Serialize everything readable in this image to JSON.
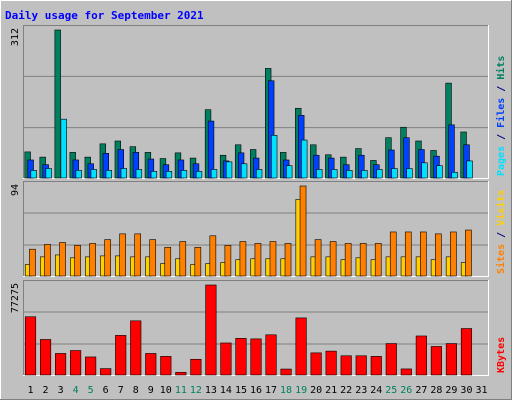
{
  "chart_data": [
    {
      "type": "bar",
      "title": "Daily usage for September 2021",
      "categories": [
        "1",
        "2",
        "3",
        "4",
        "5",
        "6",
        "7",
        "8",
        "9",
        "10",
        "11",
        "12",
        "13",
        "14",
        "15",
        "16",
        "17",
        "18",
        "19",
        "20",
        "21",
        "22",
        "23",
        "24",
        "25",
        "26",
        "27",
        "28",
        "29",
        "30",
        "31"
      ],
      "weekend_days": [
        "4",
        "5",
        "11",
        "12",
        "18",
        "19",
        "25",
        "26"
      ],
      "ylim": [
        0,
        312
      ],
      "max_label": "312",
      "right_label_parts": [
        {
          "text": "Pages",
          "color": "#00e0ff"
        },
        {
          "text": " / ",
          "color": "#000080"
        },
        {
          "text": "Files",
          "color": "#0040ff"
        },
        {
          "text": " / ",
          "color": "#000080"
        },
        {
          "text": "Hits",
          "color": "#008060"
        }
      ],
      "series": [
        {
          "name": "Hits",
          "color": "#008060",
          "values": [
            55,
            44,
            312,
            54,
            44,
            72,
            78,
            66,
            54,
            41,
            53,
            42,
            144,
            48,
            70,
            60,
            231,
            54,
            147,
            70,
            49,
            44,
            62,
            37,
            85,
            107,
            78,
            58,
            200,
            97,
            0
          ]
        },
        {
          "name": "Files",
          "color": "#0040ff",
          "values": [
            38,
            28,
            0,
            38,
            30,
            52,
            60,
            54,
            40,
            28,
            38,
            30,
            120,
            36,
            53,
            42,
            205,
            38,
            132,
            48,
            42,
            28,
            48,
            28,
            59,
            85,
            60,
            46,
            112,
            70,
            0
          ]
        },
        {
          "name": "Pages",
          "color": "#00e0ff",
          "values": [
            16,
            20,
            124,
            16,
            18,
            16,
            20,
            18,
            14,
            14,
            16,
            14,
            18,
            34,
            30,
            18,
            90,
            26,
            80,
            18,
            18,
            16,
            16,
            18,
            20,
            20,
            32,
            26,
            12,
            36,
            0
          ]
        }
      ]
    },
    {
      "type": "bar",
      "ylim": [
        0,
        94
      ],
      "max_label": "94",
      "right_label_parts": [
        {
          "text": "Sites",
          "color": "#ff8000"
        },
        {
          "text": " / ",
          "color": "#000080"
        },
        {
          "text": "Visits",
          "color": "#ffd000"
        }
      ],
      "series": [
        {
          "name": "Visits",
          "color": "#ffd000",
          "values": [
            12,
            20,
            22,
            19,
            20,
            21,
            21,
            20,
            20,
            13,
            18,
            12,
            13,
            14,
            17,
            18,
            18,
            18,
            80,
            20,
            20,
            17,
            19,
            17,
            20,
            20,
            20,
            17,
            20,
            14,
            0
          ]
        },
        {
          "name": "Sites",
          "color": "#ff8000",
          "values": [
            28,
            33,
            35,
            32,
            34,
            38,
            44,
            44,
            38,
            30,
            36,
            30,
            42,
            32,
            36,
            34,
            36,
            34,
            94,
            38,
            36,
            34,
            34,
            34,
            46,
            46,
            46,
            44,
            46,
            48,
            0
          ]
        }
      ]
    },
    {
      "type": "bar",
      "ylim": [
        0,
        77275
      ],
      "max_label": "77275",
      "right_label_parts": [
        {
          "text": "KBytes",
          "color": "#ff0000"
        }
      ],
      "series": [
        {
          "name": "KBytes",
          "color": "#ff0000",
          "values": [
            50000,
            30500,
            18500,
            21000,
            15500,
            5500,
            34000,
            46500,
            18500,
            16000,
            2300,
            13500,
            77275,
            27500,
            31500,
            31000,
            34500,
            5100,
            49000,
            19000,
            20500,
            16500,
            16500,
            16000,
            27000,
            5200,
            33500,
            24500,
            27000,
            39900,
            0
          ]
        }
      ]
    }
  ]
}
